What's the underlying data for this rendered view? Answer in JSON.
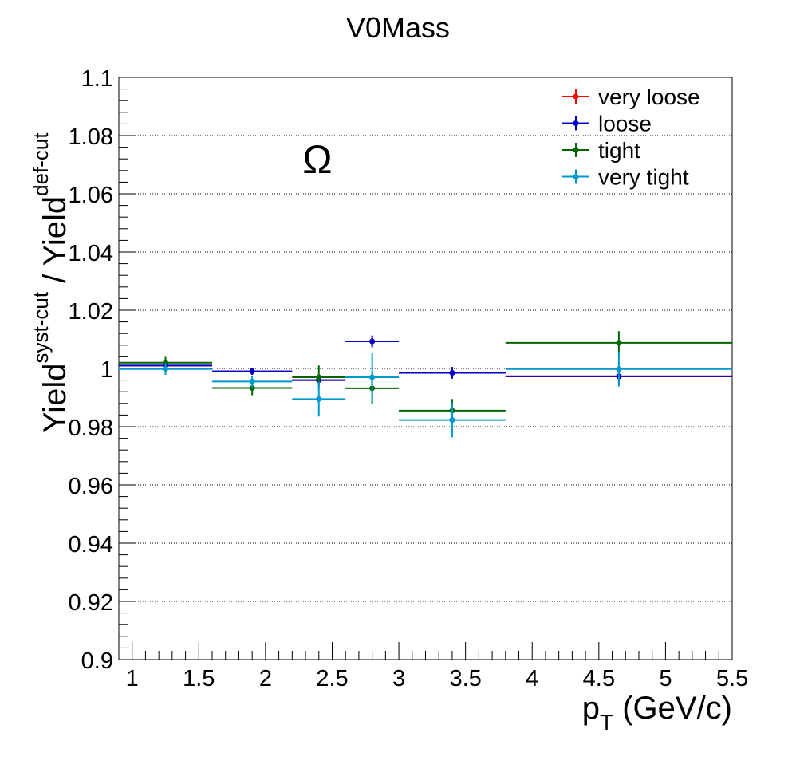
{
  "chart_data": {
    "type": "scatter",
    "title": "V0Mass",
    "annotation": "Ω",
    "xlabel": {
      "main": "p",
      "sub": "T",
      "rest": " (GeV/c)"
    },
    "ylabel": {
      "part1": "Yield",
      "sup1": "syst-cut",
      "part2": " / Yield",
      "sup2": "def-cut"
    },
    "xlim": [
      0.9,
      5.5
    ],
    "ylim": [
      0.9,
      1.1
    ],
    "x_ticks": [
      1,
      1.5,
      2,
      2.5,
      3,
      3.5,
      4,
      4.5,
      5,
      5.5
    ],
    "x_tick_labels": [
      "1",
      "1.5",
      "2",
      "2.5",
      "3",
      "3.5",
      "4",
      "4.5",
      "5",
      "5.5"
    ],
    "y_ticks": [
      0.9,
      0.92,
      0.94,
      0.96,
      0.98,
      1.0,
      1.02,
      1.04,
      1.06,
      1.08,
      1.1
    ],
    "y_tick_labels": [
      "0.9",
      "0.92",
      "0.94",
      "0.96",
      "0.98",
      "1",
      "1.02",
      "1.04",
      "1.06",
      "1.08",
      "1.1"
    ],
    "grid": {
      "horizontal": true,
      "vertical": false
    },
    "legend_position": "top-right",
    "series": [
      {
        "name": "very loose",
        "color": "#ff0000",
        "points": [
          {
            "x": 1.25,
            "xlo": 0.9,
            "xhi": 1.6,
            "y": 1.001,
            "err": 0.002
          },
          {
            "x": 1.9,
            "xlo": 1.6,
            "xhi": 2.2,
            "y": 0.999,
            "err": 0.0012
          },
          {
            "x": 2.4,
            "xlo": 2.2,
            "xhi": 2.6,
            "y": 0.996,
            "err": 0.0012
          },
          {
            "x": 2.8,
            "xlo": 2.6,
            "xhi": 3.0,
            "y": 1.0093,
            "err": 0.002
          },
          {
            "x": 3.4,
            "xlo": 3.0,
            "xhi": 3.8,
            "y": 0.9985,
            "err": 0.002
          },
          {
            "x": 4.65,
            "xlo": 3.8,
            "xhi": 5.5,
            "y": 0.9973,
            "err": 0.0025
          }
        ]
      },
      {
        "name": "loose",
        "color": "#0000cc",
        "points": [
          {
            "x": 1.25,
            "xlo": 0.9,
            "xhi": 1.6,
            "y": 1.001,
            "err": 0.002
          },
          {
            "x": 1.9,
            "xlo": 1.6,
            "xhi": 2.2,
            "y": 0.999,
            "err": 0.0012
          },
          {
            "x": 2.4,
            "xlo": 2.2,
            "xhi": 2.6,
            "y": 0.996,
            "err": 0.0012
          },
          {
            "x": 2.8,
            "xlo": 2.6,
            "xhi": 3.0,
            "y": 1.0093,
            "err": 0.002
          },
          {
            "x": 3.4,
            "xlo": 3.0,
            "xhi": 3.8,
            "y": 0.9985,
            "err": 0.002
          },
          {
            "x": 4.65,
            "xlo": 3.8,
            "xhi": 5.5,
            "y": 0.9973,
            "err": 0.0025
          }
        ]
      },
      {
        "name": "tight",
        "color": "#006600",
        "points": [
          {
            "x": 1.25,
            "xlo": 0.9,
            "xhi": 1.6,
            "y": 1.002,
            "err": 0.002
          },
          {
            "x": 1.9,
            "xlo": 1.6,
            "xhi": 2.2,
            "y": 0.9933,
            "err": 0.0025
          },
          {
            "x": 2.4,
            "xlo": 2.2,
            "xhi": 2.6,
            "y": 0.997,
            "err": 0.004
          },
          {
            "x": 2.8,
            "xlo": 2.6,
            "xhi": 3.0,
            "y": 0.9932,
            "err": 0.0055
          },
          {
            "x": 3.4,
            "xlo": 3.0,
            "xhi": 3.8,
            "y": 0.9855,
            "err": 0.004
          },
          {
            "x": 4.65,
            "xlo": 3.8,
            "xhi": 5.5,
            "y": 1.0088,
            "err": 0.004
          }
        ]
      },
      {
        "name": "very tight",
        "color": "#0099cc",
        "points": [
          {
            "x": 1.25,
            "xlo": 0.9,
            "xhi": 1.6,
            "y": 0.9998,
            "err": 0.002
          },
          {
            "x": 1.9,
            "xlo": 1.6,
            "xhi": 2.2,
            "y": 0.9955,
            "err": 0.002
          },
          {
            "x": 2.4,
            "xlo": 2.2,
            "xhi": 2.6,
            "y": 0.9895,
            "err": 0.006
          },
          {
            "x": 2.8,
            "xlo": 2.6,
            "xhi": 3.0,
            "y": 0.997,
            "err": 0.0085
          },
          {
            "x": 3.4,
            "xlo": 3.0,
            "xhi": 3.8,
            "y": 0.9823,
            "err": 0.006
          },
          {
            "x": 4.65,
            "xlo": 3.8,
            "xhi": 5.5,
            "y": 0.9998,
            "err": 0.006
          }
        ]
      }
    ]
  }
}
